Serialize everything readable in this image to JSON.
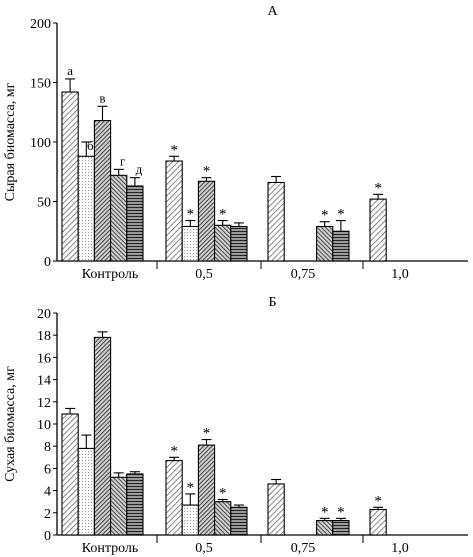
{
  "chart_data": [
    {
      "type": "bar",
      "panel_label": "А",
      "ylabel": "Сырая биомасса, мг",
      "ylim": [
        0,
        200
      ],
      "yticks": [
        "0",
        "50",
        "100",
        "150",
        "200"
      ],
      "categories": [
        "Контроль",
        "0,5",
        "0,75",
        "1,0"
      ],
      "series": [
        {
          "label": "а",
          "values": [
            142,
            84,
            66,
            52
          ],
          "errors": [
            11,
            4,
            5,
            4
          ]
        },
        {
          "label": "б",
          "values": [
            88,
            29,
            null,
            null
          ],
          "errors": [
            12,
            5,
            null,
            null
          ]
        },
        {
          "label": "в",
          "values": [
            118,
            67,
            null,
            null
          ],
          "errors": [
            12,
            3,
            null,
            null
          ]
        },
        {
          "label": "г",
          "values": [
            72,
            30,
            29,
            null
          ],
          "errors": [
            5,
            4,
            4,
            null
          ]
        },
        {
          "label": "д",
          "values": [
            63,
            29,
            25,
            null
          ],
          "errors": [
            7,
            3,
            9,
            null
          ]
        }
      ],
      "significance_marker": "*",
      "marked": [
        [
          0,
          1
        ],
        [
          1,
          1
        ],
        [
          2,
          1
        ],
        [
          3,
          1
        ],
        [
          1,
          2
        ],
        [
          3,
          2
        ],
        [
          4,
          2
        ],
        [
          0,
          3
        ]
      ],
      "grid": false
    },
    {
      "type": "bar",
      "panel_label": "Б",
      "ylabel": "Сухая биомасса, мг",
      "ylim": [
        0,
        20
      ],
      "yticks": [
        "0",
        "2",
        "4",
        "6",
        "8",
        "10",
        "12",
        "14",
        "16",
        "18",
        "20"
      ],
      "categories": [
        "Контроль",
        "0,5",
        "0,75",
        "1,0"
      ],
      "series": [
        {
          "values": [
            10.9,
            6.7,
            4.6,
            2.3
          ],
          "errors": [
            0.5,
            0.3,
            0.4,
            0.2
          ]
        },
        {
          "values": [
            7.8,
            2.7,
            null,
            null
          ],
          "errors": [
            1.2,
            1.0,
            null,
            null
          ]
        },
        {
          "values": [
            17.8,
            8.1,
            null,
            null
          ],
          "errors": [
            0.5,
            0.5,
            null,
            null
          ]
        },
        {
          "values": [
            5.2,
            3.0,
            1.3,
            null
          ],
          "errors": [
            0.4,
            0.2,
            0.2,
            null
          ]
        },
        {
          "values": [
            5.5,
            2.5,
            1.3,
            null
          ],
          "errors": [
            0.2,
            0.2,
            0.2,
            null
          ]
        }
      ],
      "significance_marker": "*",
      "marked": [
        [
          0,
          1
        ],
        [
          1,
          1
        ],
        [
          2,
          1
        ],
        [
          3,
          1
        ],
        [
          1,
          2
        ],
        [
          3,
          2
        ],
        [
          4,
          2
        ],
        [
          0,
          3
        ]
      ],
      "grid": false
    }
  ]
}
